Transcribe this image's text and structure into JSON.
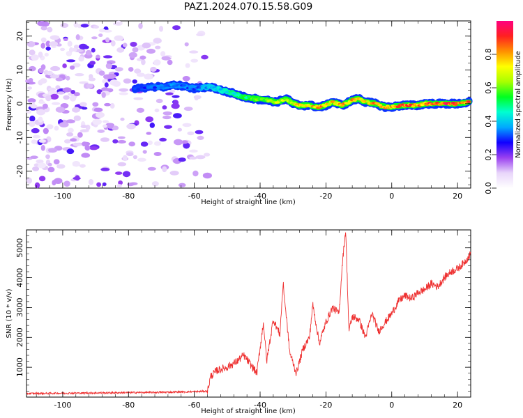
{
  "figure": {
    "title": "PAZ1.2024.070.15.58.G09"
  },
  "chart_data": [
    {
      "type": "heatmap",
      "title": "",
      "xlabel": "Height of straight line (km)",
      "ylabel": "Frequency (Hz)",
      "xlim": [
        -111,
        24
      ],
      "ylim": [
        -25,
        24.5
      ],
      "xticks": [
        -100,
        -80,
        -60,
        -40,
        -20,
        0,
        20
      ],
      "yticks": [
        -20,
        -10,
        0,
        10,
        20
      ],
      "colorbar": {
        "label": "Normalized spectral amplitude",
        "range": [
          0,
          1
        ],
        "ticks": [
          "0.0",
          "0.2",
          "0.4",
          "0.6",
          "0.8"
        ],
        "colors": [
          "#ffffff",
          "#e8d5fa",
          "#9a40f0",
          "#1000ff",
          "#00aaff",
          "#00ffd0",
          "#00ff20",
          "#a8ff00",
          "#ffff00",
          "#ff9000",
          "#ff2020",
          "#ff0080"
        ]
      },
      "signal_ridge": {
        "x": [
          -78,
          -70,
          -65,
          -60,
          -55,
          -52,
          -48,
          -45,
          -42,
          -38,
          -35,
          -32,
          -30,
          -28,
          -25,
          -22,
          -20,
          -18,
          -15,
          -12,
          -10,
          -8,
          -5,
          -2,
          0,
          3,
          5,
          8,
          10,
          12,
          15,
          18,
          20,
          24
        ],
        "y": [
          4.5,
          5,
          5.5,
          4.5,
          5,
          4,
          3,
          2,
          1.5,
          1,
          0.5,
          1.5,
          0,
          -0.5,
          -0.5,
          -1,
          -0.5,
          0.5,
          -0.5,
          1,
          1.5,
          0.5,
          0,
          -1,
          -1,
          -0.5,
          -0.5,
          -0.5,
          0,
          0,
          0,
          0,
          0,
          0.5
        ],
        "amplitude": [
          0.3,
          0.35,
          0.35,
          0.35,
          0.4,
          0.45,
          0.5,
          0.55,
          0.6,
          0.65,
          0.7,
          0.7,
          0.75,
          0.8,
          0.8,
          0.85,
          0.8,
          0.8,
          0.85,
          0.85,
          0.8,
          0.8,
          0.85,
          0.85,
          0.85,
          0.9,
          0.9,
          0.9,
          0.9,
          0.9,
          0.95,
          0.95,
          0.95,
          0.9
        ]
      },
      "noise_region_x": [
        -111,
        -56
      ]
    },
    {
      "type": "line",
      "title": "",
      "xlabel": "Height of straight line (km)",
      "ylabel": "SNR (10 * v/v)",
      "xlim": [
        -111,
        24
      ],
      "ylim": [
        0,
        5600
      ],
      "xticks": [
        -100,
        -80,
        -60,
        -40,
        -20,
        0,
        20
      ],
      "yticks": [
        1000,
        2000,
        3000,
        4000,
        5000
      ],
      "color": "#ee3030",
      "series": [
        {
          "x": [
            -111,
            -100,
            -90,
            -80,
            -70,
            -60,
            -56,
            -55,
            -53,
            -50,
            -47,
            -45,
            -43,
            -41,
            -39,
            -38,
            -36,
            -34,
            -33,
            -31,
            -29,
            -27,
            -25,
            -24,
            -22,
            -20,
            -18,
            -16,
            -15,
            -14,
            -13,
            -12,
            -10,
            -8,
            -6,
            -4,
            -2,
            0,
            2,
            4,
            6,
            8,
            10,
            12,
            14,
            16,
            18,
            20,
            22,
            24
          ],
          "values": [
            120,
            130,
            140,
            150,
            160,
            180,
            200,
            700,
            900,
            1000,
            1200,
            1400,
            1100,
            800,
            2500,
            1200,
            2600,
            2100,
            3800,
            1500,
            800,
            1600,
            2000,
            3100,
            1800,
            2500,
            3000,
            2800,
            4500,
            5600,
            2200,
            2700,
            2600,
            2000,
            2800,
            2200,
            2500,
            2800,
            3200,
            3400,
            3300,
            3500,
            3600,
            3800,
            3700,
            4000,
            4200,
            4300,
            4500,
            4800
          ]
        }
      ]
    }
  ]
}
